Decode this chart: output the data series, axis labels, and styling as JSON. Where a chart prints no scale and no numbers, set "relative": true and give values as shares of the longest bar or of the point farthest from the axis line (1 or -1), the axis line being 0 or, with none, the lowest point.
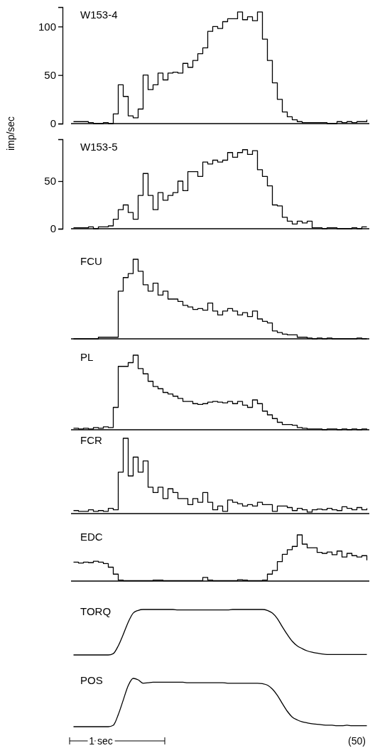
{
  "chart_data": [
    {
      "type": "step",
      "title": "W153-4",
      "ylabel": "imp/sec",
      "color": "#000000",
      "ylim": [
        0,
        120
      ],
      "yticks": [
        0,
        50,
        100
      ],
      "categories": [
        null,
        null,
        null,
        null,
        null,
        null,
        null,
        null,
        null,
        null,
        null,
        null,
        null,
        null,
        null,
        null,
        null,
        null,
        null,
        null,
        null,
        null,
        null,
        null,
        null,
        null,
        null,
        null,
        null,
        null,
        null,
        null,
        null,
        null,
        null,
        null,
        null,
        null,
        null,
        null,
        null,
        null,
        null,
        null,
        null,
        null,
        null,
        null,
        null,
        null,
        null,
        null,
        null,
        null,
        null,
        null,
        null,
        null,
        null,
        null
      ],
      "values": [
        2,
        2,
        2,
        1,
        0,
        0,
        1,
        0,
        10,
        40,
        28,
        8,
        6,
        15,
        50,
        35,
        40,
        52,
        45,
        52,
        53,
        52,
        62,
        58,
        65,
        72,
        78,
        95,
        100,
        98,
        105,
        108,
        108,
        115,
        107,
        110,
        106,
        115,
        87,
        65,
        42,
        25,
        12,
        7,
        4,
        2,
        1,
        1,
        1,
        1,
        1,
        0,
        0,
        2,
        1,
        2,
        1,
        2,
        2,
        4
      ]
    },
    {
      "type": "step",
      "title": "W153-5",
      "color": "#000000",
      "ylim": [
        0,
        94
      ],
      "yticks": [
        0,
        50
      ],
      "categories": [
        null,
        null,
        null,
        null,
        null,
        null,
        null,
        null,
        null,
        null,
        null,
        null,
        null,
        null,
        null,
        null,
        null,
        null,
        null,
        null,
        null,
        null,
        null,
        null,
        null,
        null,
        null,
        null,
        null,
        null,
        null,
        null,
        null,
        null,
        null,
        null,
        null,
        null,
        null,
        null,
        null,
        null,
        null,
        null,
        null,
        null,
        null,
        null,
        null,
        null,
        null,
        null,
        null,
        null,
        null,
        null,
        null,
        null,
        null,
        null
      ],
      "values": [
        1,
        1,
        1,
        2,
        0,
        2,
        2,
        3,
        10,
        20,
        25,
        17,
        10,
        35,
        58,
        35,
        20,
        38,
        30,
        35,
        38,
        50,
        40,
        60,
        60,
        55,
        70,
        68,
        72,
        70,
        72,
        80,
        75,
        80,
        83,
        78,
        82,
        62,
        55,
        45,
        25,
        24,
        12,
        8,
        5,
        8,
        6,
        8,
        1,
        1,
        0,
        1,
        1,
        0,
        0,
        0,
        1,
        0,
        2,
        2
      ]
    },
    {
      "type": "step",
      "title": "FCU",
      "color": "#000000",
      "relative": true,
      "categories": [
        null,
        null,
        null,
        null,
        null,
        null,
        null,
        null,
        null,
        null,
        null,
        null,
        null,
        null,
        null,
        null,
        null,
        null,
        null,
        null,
        null,
        null,
        null,
        null,
        null,
        null,
        null,
        null,
        null,
        null,
        null,
        null,
        null,
        null,
        null,
        null,
        null,
        null,
        null,
        null,
        null,
        null,
        null,
        null,
        null,
        null,
        null,
        null,
        null,
        null,
        null,
        null,
        null,
        null,
        null,
        null,
        null,
        null,
        null,
        null
      ],
      "values": [
        0,
        0,
        0,
        0,
        0,
        0.02,
        0.02,
        0.02,
        0.02,
        0.6,
        0.77,
        0.82,
        1,
        0.85,
        0.68,
        0.6,
        0.7,
        0.55,
        0.6,
        0.5,
        0.5,
        0.47,
        0.42,
        0.4,
        0.37,
        0.38,
        0.36,
        0.45,
        0.35,
        0.3,
        0.35,
        0.38,
        0.35,
        0.3,
        0.33,
        0.28,
        0.35,
        0.25,
        0.22,
        0.2,
        0.1,
        0.08,
        0.06,
        0.05,
        0.05,
        0.02,
        0.02,
        0.01,
        0,
        0.01,
        0,
        0.01,
        0,
        0,
        0,
        0,
        0,
        0.01,
        0,
        0
      ]
    },
    {
      "type": "step",
      "title": "PL",
      "color": "#000000",
      "relative": true,
      "categories": [
        null,
        null,
        null,
        null,
        null,
        null,
        null,
        null,
        null,
        null,
        null,
        null,
        null,
        null,
        null,
        null,
        null,
        null,
        null,
        null,
        null,
        null,
        null,
        null,
        null,
        null,
        null,
        null,
        null,
        null,
        null,
        null,
        null,
        null,
        null,
        null,
        null,
        null,
        null,
        null,
        null,
        null,
        null,
        null,
        null,
        null,
        null,
        null,
        null,
        null,
        null,
        null,
        null,
        null,
        null,
        null,
        null,
        null,
        null,
        null
      ],
      "values": [
        0.02,
        0.01,
        0.02,
        0.01,
        0.03,
        0.02,
        0.04,
        0.03,
        0.3,
        0.85,
        0.85,
        0.9,
        1,
        0.82,
        0.75,
        0.65,
        0.58,
        0.55,
        0.5,
        0.48,
        0.45,
        0.42,
        0.38,
        0.38,
        0.35,
        0.34,
        0.35,
        0.37,
        0.38,
        0.37,
        0.36,
        0.38,
        0.35,
        0.38,
        0.33,
        0.3,
        0.4,
        0.35,
        0.25,
        0.2,
        0.15,
        0.1,
        0.07,
        0.07,
        0.06,
        0.03,
        0.02,
        0.01,
        0.01,
        0.01,
        0,
        0.01,
        0.01,
        0,
        0.01,
        0,
        0.01,
        0,
        0.01,
        0
      ]
    },
    {
      "type": "step",
      "title": "FCR",
      "color": "#000000",
      "relative": true,
      "categories": [
        null,
        null,
        null,
        null,
        null,
        null,
        null,
        null,
        null,
        null,
        null,
        null,
        null,
        null,
        null,
        null,
        null,
        null,
        null,
        null,
        null,
        null,
        null,
        null,
        null,
        null,
        null,
        null,
        null,
        null,
        null,
        null,
        null,
        null,
        null,
        null,
        null,
        null,
        null,
        null,
        null,
        null,
        null,
        null,
        null,
        null,
        null,
        null,
        null,
        null,
        null,
        null,
        null,
        null,
        null,
        null,
        null,
        null,
        null,
        null
      ],
      "values": [
        0.04,
        0.03,
        0.03,
        0.05,
        0.03,
        0.04,
        0.03,
        0.07,
        0.05,
        0.55,
        1,
        0.5,
        0.75,
        0.55,
        0.7,
        0.35,
        0.28,
        0.35,
        0.2,
        0.33,
        0.28,
        0.2,
        0.2,
        0.12,
        0.2,
        0.15,
        0.28,
        0.15,
        0.05,
        0.1,
        0.03,
        0.18,
        0.15,
        0.13,
        0.1,
        0.12,
        0.1,
        0.15,
        0.12,
        0.12,
        0.03,
        0.1,
        0.1,
        0.08,
        0.04,
        0.07,
        0.05,
        0.02,
        0.05,
        0.06,
        0.05,
        0.07,
        0.05,
        0.04,
        0.09,
        0.07,
        0.05,
        0.08,
        0.05,
        0.07
      ]
    },
    {
      "type": "step",
      "title": "EDC",
      "color": "#000000",
      "relative": true,
      "categories": [
        null,
        null,
        null,
        null,
        null,
        null,
        null,
        null,
        null,
        null,
        null,
        null,
        null,
        null,
        null,
        null,
        null,
        null,
        null,
        null,
        null,
        null,
        null,
        null,
        null,
        null,
        null,
        null,
        null,
        null,
        null,
        null,
        null,
        null,
        null,
        null,
        null,
        null,
        null,
        null,
        null,
        null,
        null,
        null,
        null,
        null,
        null,
        null,
        null,
        null,
        null,
        null,
        null,
        null,
        null,
        null,
        null,
        null,
        null,
        null
      ],
      "values": [
        0.41,
        0.39,
        0.41,
        0.4,
        0.43,
        0.41,
        0.38,
        0.3,
        0.15,
        0.02,
        0.01,
        0.01,
        0.01,
        0.01,
        0.01,
        0.01,
        0.02,
        0.02,
        0.01,
        0.01,
        0.01,
        0.01,
        0.01,
        0.01,
        0.01,
        0.01,
        0.08,
        0.02,
        0.01,
        0.01,
        0.01,
        0.01,
        0.01,
        0.03,
        0.02,
        0.01,
        0.01,
        0.01,
        0.02,
        0.15,
        0.23,
        0.42,
        0.58,
        0.68,
        0.75,
        1,
        0.8,
        0.72,
        0.72,
        0.62,
        0.6,
        0.63,
        0.57,
        0.65,
        0.52,
        0.6,
        0.55,
        0.52,
        0.55,
        0.45
      ]
    },
    {
      "type": "line",
      "title": "TORQ",
      "color": "#000000",
      "relative": true,
      "categories": [
        null,
        null,
        null,
        null,
        null,
        null,
        null,
        null,
        null,
        null,
        null,
        null,
        null,
        null,
        null,
        null,
        null,
        null,
        null,
        null,
        null,
        null,
        null,
        null,
        null,
        null,
        null,
        null,
        null,
        null,
        null,
        null,
        null,
        null,
        null,
        null,
        null,
        null,
        null,
        null,
        null,
        null,
        null,
        null,
        null,
        null,
        null,
        null,
        null,
        null,
        null,
        null,
        null,
        null,
        null,
        null,
        null,
        null,
        null,
        null
      ],
      "values": [
        0,
        0,
        0,
        0,
        0,
        0,
        0,
        0,
        0.03,
        0.2,
        0.45,
        0.72,
        0.92,
        0.98,
        1,
        1,
        1,
        1,
        1,
        1,
        1,
        0.99,
        0.99,
        0.99,
        0.99,
        0.99,
        0.99,
        0.99,
        0.99,
        0.99,
        0.99,
        0.99,
        1,
        1,
        1,
        1,
        1,
        1,
        1,
        0.98,
        0.92,
        0.8,
        0.62,
        0.45,
        0.3,
        0.2,
        0.14,
        0.09,
        0.06,
        0.04,
        0.02,
        0.01,
        0.01,
        0.01,
        0.01,
        0.01,
        0.01,
        0.01,
        0.01,
        0.01
      ]
    },
    {
      "type": "line",
      "title": "POS",
      "color": "#000000",
      "relative": true,
      "annotations": [
        "1 sec",
        "(50)"
      ],
      "categories": [
        null,
        null,
        null,
        null,
        null,
        null,
        null,
        null,
        null,
        null,
        null,
        null,
        null,
        null,
        null,
        null,
        null,
        null,
        null,
        null,
        null,
        null,
        null,
        null,
        null,
        null,
        null,
        null,
        null,
        null,
        null,
        null,
        null,
        null,
        null,
        null,
        null,
        null,
        null,
        null,
        null,
        null,
        null,
        null,
        null,
        null,
        null,
        null,
        null,
        null,
        null,
        null,
        null,
        null,
        null,
        null,
        null,
        null,
        null,
        null
      ],
      "values": [
        0,
        0,
        0,
        0,
        0,
        0,
        0,
        0,
        0.03,
        0.25,
        0.55,
        0.85,
        1,
        0.97,
        0.9,
        0.91,
        0.92,
        0.92,
        0.92,
        0.92,
        0.92,
        0.92,
        0.92,
        0.91,
        0.91,
        0.91,
        0.91,
        0.91,
        0.91,
        0.91,
        0.91,
        0.9,
        0.9,
        0.9,
        0.9,
        0.9,
        0.9,
        0.9,
        0.89,
        0.86,
        0.78,
        0.65,
        0.48,
        0.32,
        0.2,
        0.14,
        0.1,
        0.08,
        0.06,
        0.05,
        0.04,
        0.03,
        0.03,
        0.02,
        0.02,
        0.03,
        0.02,
        0.02,
        0.02,
        0.02
      ]
    }
  ]
}
